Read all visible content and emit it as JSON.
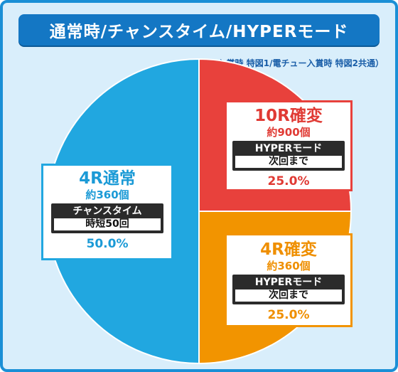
{
  "title": "通常時/チャンスタイム/HYPERモード",
  "note": "（ヘソ入賞時 特図1/電チュー入賞時 特図2共通）",
  "chart_data": {
    "type": "pie",
    "slices": [
      {
        "title": "10R確変",
        "balls": "約900個",
        "feature": "HYPERモード",
        "feature_detail": "次回まで",
        "pct_label": "25.0%",
        "value": 25.0,
        "color": "#e8413c"
      },
      {
        "title": "4R確変",
        "balls": "約360個",
        "feature": "HYPERモード",
        "feature_detail": "次回まで",
        "pct_label": "25.0%",
        "value": 25.0,
        "color": "#f29400"
      },
      {
        "title": "4R通常",
        "balls": "約360個",
        "feature": "チャンスタイム",
        "feature_detail": "時短50回",
        "pct_label": "50.0%",
        "value": 50.0,
        "color": "#21a7e0"
      }
    ]
  }
}
